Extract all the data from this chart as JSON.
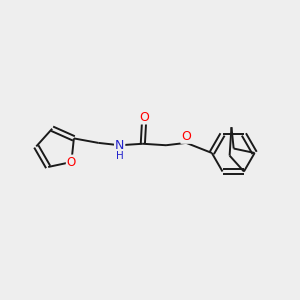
{
  "bg_color": "#eeeeee",
  "bond_color": "#1a1a1a",
  "bond_width": 1.4,
  "figsize": [
    3.0,
    3.0
  ],
  "dpi": 100,
  "xlim": [
    0,
    10
  ],
  "ylim": [
    0,
    10
  ]
}
